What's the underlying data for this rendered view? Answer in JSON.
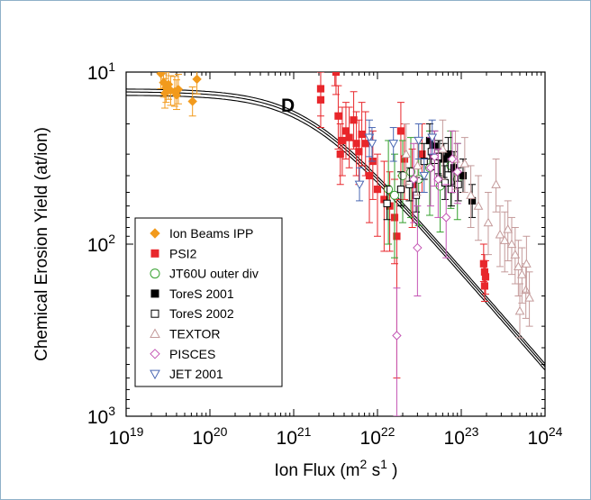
{
  "chart_data": {
    "type": "scatter",
    "xlabel": "Ion Flux (m",
    "xlabel_sup1": "2",
    "xlabel_mid": " s",
    "xlabel_sup2": "1",
    "xlabel_end": " )",
    "ylabel": "Chemical Erosion Yield (at/ion)",
    "xscale": "log",
    "yscale": "log",
    "xlim": [
      1e+19,
      1e+24
    ],
    "ylim": [
      1000.0,
      10.0
    ],
    "x_ticks": [
      {
        "base": "10",
        "exp": "19",
        "value": 1e+19
      },
      {
        "base": "10",
        "exp": "20",
        "value": 1e+20
      },
      {
        "base": "10",
        "exp": "21",
        "value": 1e+21
      },
      {
        "base": "10",
        "exp": "22",
        "value": 1e+22
      },
      {
        "base": "10",
        "exp": "23",
        "value": 1e+23
      },
      {
        "base": "10",
        "exp": "24",
        "value": 1e+24
      }
    ],
    "y_ticks": [
      {
        "base": "10",
        "exp": "1",
        "value": 10.0
      },
      {
        "base": "10",
        "exp": "2",
        "value": 100.0
      },
      {
        "base": "10",
        "exp": "3",
        "value": 1000.0
      }
    ],
    "annotation": "D",
    "legend_position": "lower-left",
    "fit_curves": [
      {
        "y0": 12.5,
        "xk": 1.4e+21,
        "p": 0.56
      },
      {
        "y0": 13.0,
        "xk": 1.4e+21,
        "p": 0.56
      },
      {
        "y0": 13.6,
        "xk": 1.4e+21,
        "p": 0.56
      }
    ],
    "series": [
      {
        "name": "Ion Beams IPP",
        "marker": "diamond-filled",
        "color": "#f29a1c",
        "points": [
          [
            2.6e+19,
            10.2,
            8.3,
            12.5
          ],
          [
            2.8e+19,
            11.5,
            9.4,
            14.0
          ],
          [
            3e+19,
            12.3,
            10.0,
            15.0
          ],
          [
            3.2e+19,
            11.8,
            9.6,
            14.4
          ],
          [
            3.4e+19,
            12.8,
            10.5,
            15.6
          ],
          [
            3.8e+19,
            13.0,
            10.6,
            15.8
          ],
          [
            4.2e+19,
            12.6,
            10.3,
            15.3
          ],
          [
            6.2e+19,
            14.8,
            12.2,
            18.0
          ],
          [
            7e+19,
            11.0,
            9.0,
            13.4
          ],
          [
            2.9e+19,
            13.3,
            10.9,
            16.2
          ],
          [
            4e+19,
            13.6,
            11.1,
            16.5
          ]
        ]
      },
      {
        "name": "PSI2",
        "marker": "square-filled",
        "color": "#e8262b",
        "points": [
          [
            2.1e+21,
            12.5,
            8.5,
            18.0
          ],
          [
            2.1e+21,
            14.5,
            10.0,
            21.0
          ],
          [
            3.1e+21,
            9.0,
            7.0,
            12.0
          ],
          [
            3.2e+21,
            10.0,
            7.5,
            13.5
          ],
          [
            3.4e+21,
            18.0,
            12.0,
            28.0
          ],
          [
            3.6e+21,
            30.0,
            20.0,
            45.0
          ],
          [
            3.8e+21,
            25.0,
            16.0,
            40.0
          ],
          [
            4.2e+21,
            22.0,
            15.0,
            32.0
          ],
          [
            4.6e+21,
            24.0,
            16.0,
            36.0
          ],
          [
            5.2e+21,
            19.0,
            13.0,
            28.0
          ],
          [
            5.6e+21,
            26.0,
            17.0,
            40.0
          ],
          [
            6e+21,
            29.0,
            19.0,
            45.0
          ],
          [
            6.5e+21,
            23.0,
            15.0,
            35.0
          ],
          [
            7.2e+21,
            26.0,
            17.0,
            40.0
          ],
          [
            8e+21,
            40.0,
            25.0,
            75.0
          ],
          [
            8.8e+21,
            33.0,
            22.0,
            55.0
          ],
          [
            1e+22,
            48.0,
            30.0,
            90.0
          ],
          [
            1.2e+22,
            55.0,
            33.0,
            110.0
          ],
          [
            1.4e+22,
            60.0,
            38.0,
            110.0
          ],
          [
            1.6e+22,
            70.0,
            42.0,
            130.0
          ],
          [
            1.7e+22,
            90.0,
            55.0,
            600.0
          ],
          [
            1.9e+22,
            22.0,
            15.0,
            40.0
          ],
          [
            2.1e+22,
            32.0,
            20.0,
            55.0
          ],
          [
            2.6e+22,
            45.0,
            28.0,
            80.0
          ],
          [
            3.4e+22,
            30.0,
            20.0,
            50.0
          ],
          [
            1.85e+23,
            130.0,
            100.0,
            165.0
          ],
          [
            1.9e+23,
            145.0,
            115.0,
            180.0
          ],
          [
            1.95e+23,
            155.0,
            125.0,
            195.0
          ],
          [
            1.9e+23,
            175.0,
            140.0,
            215.0
          ]
        ]
      },
      {
        "name": "JT60U outer div",
        "marker": "circle-open",
        "color": "#33a02c",
        "points": [
          [
            1.35e+22,
            48.0,
            25.0,
            100.0
          ],
          [
            1.6e+22,
            52.0,
            30.0,
            120.0
          ],
          [
            2e+22,
            40.0,
            25.0,
            75.0
          ],
          [
            2.5e+22,
            38.0,
            24.0,
            70.0
          ],
          [
            3.1e+22,
            42.0,
            26.0,
            78.0
          ],
          [
            4.2e+22,
            36.0,
            22.0,
            68.0
          ],
          [
            5.6e+22,
            46.0,
            28.0,
            85.0
          ],
          [
            7.5e+22,
            35.0,
            22.0,
            62.0
          ],
          [
            9e+22,
            42.0,
            26.0,
            72.0
          ]
        ]
      },
      {
        "name": "ToreS 2001",
        "marker": "square-filled",
        "color": "#000000",
        "points": [
          [
            4.2e+22,
            25.0,
            20.0,
            32.0
          ],
          [
            4.8e+22,
            27.0,
            22.0,
            34.0
          ],
          [
            5.5e+22,
            31.0,
            25.0,
            40.0
          ],
          [
            6.2e+22,
            32.0,
            26.0,
            41.0
          ],
          [
            7e+22,
            30.0,
            24.0,
            38.0
          ],
          [
            8.2e+22,
            36.0,
            29.0,
            45.0
          ],
          [
            1.05e+23,
            40.0,
            32.0,
            50.0
          ],
          [
            1.35e+23,
            56.0,
            45.0,
            70.0
          ]
        ]
      },
      {
        "name": "ToreS 2002",
        "marker": "square-open",
        "color": "#000000",
        "points": [
          [
            1.3e+22,
            58.0,
            46.0,
            72.0
          ],
          [
            1.9e+22,
            48.0,
            38.0,
            60.0
          ],
          [
            2.4e+22,
            45.0,
            36.0,
            56.0
          ],
          [
            2.9e+22,
            52.0,
            41.0,
            65.0
          ],
          [
            3.6e+22,
            33.0,
            26.0,
            42.0
          ],
          [
            4.4e+22,
            29.0,
            23.0,
            37.0
          ],
          [
            5.3e+22,
            31.0,
            25.0,
            39.0
          ],
          [
            6.4e+22,
            44.0,
            35.0,
            55.0
          ],
          [
            7.6e+22,
            48.0,
            38.0,
            60.0
          ],
          [
            9.2e+22,
            45.0,
            36.0,
            56.0
          ]
        ]
      },
      {
        "name": "TEXTOR",
        "marker": "triangle-open",
        "color": "#c49a9a",
        "points": [
          [
            2.2e+22,
            30.0,
            20.0,
            45.0
          ],
          [
            3e+22,
            35.0,
            24.0,
            52.0
          ],
          [
            6e+22,
            28.0,
            19.0,
            42.0
          ],
          [
            8.5e+22,
            32.0,
            22.0,
            48.0
          ],
          [
            1.1e+23,
            34.0,
            24.0,
            50.0
          ],
          [
            1.3e+23,
            52.0,
            35.0,
            80.0
          ],
          [
            1.6e+23,
            60.0,
            40.0,
            95.0
          ],
          [
            2.1e+23,
            75.0,
            50.0,
            115.0
          ],
          [
            2.6e+23,
            45.0,
            32.0,
            65.0
          ],
          [
            2.9e+23,
            88.0,
            60.0,
            135.0
          ],
          [
            3.3e+23,
            95.0,
            65.0,
            145.0
          ],
          [
            3.6e+23,
            82.0,
            56.0,
            125.0
          ],
          [
            4e+23,
            100.0,
            70.0,
            150.0
          ],
          [
            4.4e+23,
            115.0,
            80.0,
            170.0
          ],
          [
            4.8e+23,
            135.0,
            95.0,
            200.0
          ],
          [
            5.3e+23,
            150.0,
            105.0,
            220.0
          ],
          [
            5.9e+23,
            185.0,
            130.0,
            270.0
          ],
          [
            6.5e+23,
            205.0,
            145.0,
            300.0
          ],
          [
            5e+23,
            245.0,
            170.0,
            350.0
          ],
          [
            6e+23,
            130.0,
            90.0,
            190.0
          ]
        ]
      },
      {
        "name": "PISCES",
        "marker": "diamond-open",
        "color": "#c455b4",
        "points": [
          [
            1.7e+22,
            340.0,
            180.0,
            1000.0
          ],
          [
            2.7e+22,
            42.0,
            26.0,
            75.0
          ],
          [
            3e+22,
            105.0,
            60.0,
            200.0
          ],
          [
            4.3e+22,
            36.0,
            24.0,
            60.0
          ],
          [
            5.3e+22,
            42.0,
            28.0,
            70.0
          ],
          [
            6.6e+22,
            70.0,
            45.0,
            120.0
          ],
          [
            7.8e+22,
            32.0,
            22.0,
            50.0
          ],
          [
            9e+22,
            38.0,
            26.0,
            58.0
          ],
          [
            4.8e+22,
            31.0,
            22.0,
            46.0
          ]
        ]
      },
      {
        "name": "JET 2001",
        "marker": "triangle-down-open",
        "color": "#4a67b3",
        "points": [
          [
            8e+21,
            24.0,
            19.0,
            31.0
          ],
          [
            8.6e+21,
            26.0,
            21.0,
            33.0
          ],
          [
            1.55e+22,
            26.0,
            21.0,
            33.0
          ],
          [
            3.1e+22,
            25.0,
            20.0,
            32.0
          ],
          [
            3.6e+22,
            40.0,
            32.0,
            50.0
          ],
          [
            4.5e+22,
            24.0,
            19.0,
            30.0
          ],
          [
            6.1e+21,
            45.0,
            36.0,
            56.0
          ]
        ]
      }
    ]
  }
}
